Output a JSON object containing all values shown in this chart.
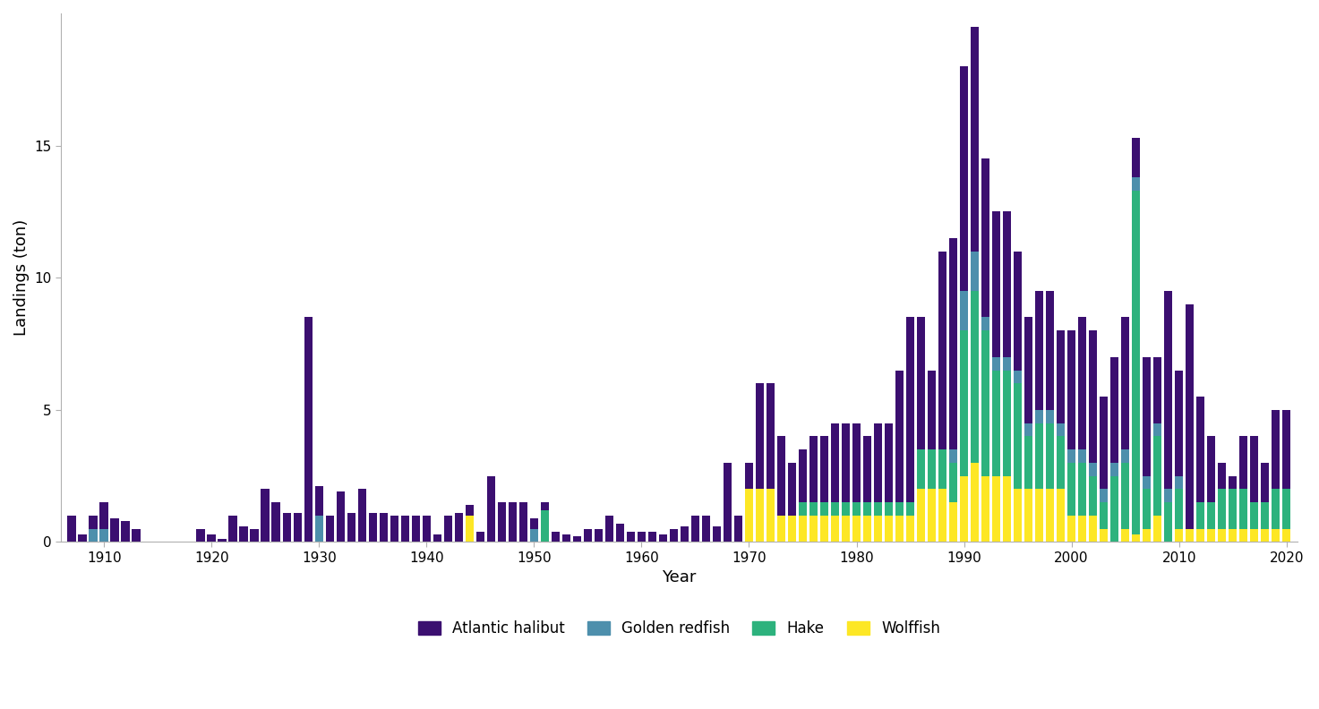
{
  "years": [
    1907,
    1908,
    1909,
    1910,
    1911,
    1912,
    1913,
    1914,
    1915,
    1916,
    1917,
    1918,
    1919,
    1920,
    1921,
    1922,
    1923,
    1924,
    1925,
    1926,
    1927,
    1928,
    1929,
    1930,
    1931,
    1932,
    1933,
    1934,
    1935,
    1936,
    1937,
    1938,
    1939,
    1940,
    1941,
    1942,
    1943,
    1944,
    1945,
    1946,
    1947,
    1948,
    1949,
    1950,
    1951,
    1952,
    1953,
    1954,
    1955,
    1956,
    1957,
    1958,
    1959,
    1960,
    1961,
    1962,
    1963,
    1964,
    1965,
    1966,
    1967,
    1968,
    1969,
    1970,
    1971,
    1972,
    1973,
    1974,
    1975,
    1976,
    1977,
    1978,
    1979,
    1980,
    1981,
    1982,
    1983,
    1984,
    1985,
    1986,
    1987,
    1988,
    1989,
    1990,
    1991,
    1992,
    1993,
    1994,
    1995,
    1996,
    1997,
    1998,
    1999,
    2000,
    2001,
    2002,
    2003,
    2004,
    2005,
    2006,
    2007,
    2008,
    2009,
    2010,
    2011,
    2012,
    2013,
    2014,
    2015,
    2016,
    2017,
    2018,
    2019,
    2020
  ],
  "atlantic_halibut": [
    1.0,
    0.3,
    0.5,
    1.0,
    0.9,
    0.8,
    0.5,
    0.0,
    0.0,
    0.0,
    0.0,
    0.0,
    0.5,
    0.3,
    0.1,
    1.0,
    0.6,
    0.5,
    2.0,
    1.5,
    1.1,
    1.1,
    8.5,
    1.1,
    1.0,
    1.9,
    1.1,
    2.0,
    1.1,
    1.1,
    1.0,
    1.0,
    1.0,
    1.0,
    0.3,
    1.0,
    1.1,
    0.4,
    0.4,
    2.5,
    1.5,
    1.5,
    1.5,
    0.4,
    0.3,
    0.4,
    0.3,
    0.2,
    0.5,
    0.5,
    1.0,
    0.7,
    0.4,
    0.4,
    0.4,
    0.3,
    0.5,
    0.6,
    1.0,
    1.0,
    0.6,
    3.0,
    1.0,
    1.0,
    4.0,
    4.0,
    3.0,
    2.0,
    2.0,
    2.5,
    2.5,
    3.0,
    3.0,
    3.0,
    2.5,
    3.0,
    3.0,
    5.0,
    7.0,
    5.0,
    3.0,
    7.5,
    8.0,
    8.5,
    8.5,
    6.0,
    5.5,
    5.5,
    4.5,
    4.0,
    4.5,
    4.5,
    3.5,
    4.5,
    5.0,
    5.0,
    3.5,
    4.0,
    5.0,
    1.5,
    4.5,
    2.5,
    7.5,
    4.0,
    8.5,
    4.0,
    2.5,
    1.0,
    0.5,
    2.0,
    2.5,
    1.5,
    3.0,
    3.0
  ],
  "golden_redfish": [
    0.0,
    0.0,
    0.5,
    0.5,
    0.0,
    0.0,
    0.0,
    0.0,
    0.0,
    0.0,
    0.0,
    0.0,
    0.0,
    0.0,
    0.0,
    0.0,
    0.0,
    0.0,
    0.0,
    0.0,
    0.0,
    0.0,
    0.0,
    1.0,
    0.0,
    0.0,
    0.0,
    0.0,
    0.0,
    0.0,
    0.0,
    0.0,
    0.0,
    0.0,
    0.0,
    0.0,
    0.0,
    0.0,
    0.0,
    0.0,
    0.0,
    0.0,
    0.0,
    0.5,
    0.0,
    0.0,
    0.0,
    0.0,
    0.0,
    0.0,
    0.0,
    0.0,
    0.0,
    0.0,
    0.0,
    0.0,
    0.0,
    0.0,
    0.0,
    0.0,
    0.0,
    0.0,
    0.0,
    0.0,
    0.0,
    0.0,
    0.0,
    0.0,
    0.0,
    0.0,
    0.0,
    0.0,
    0.0,
    0.0,
    0.0,
    0.0,
    0.0,
    0.0,
    0.0,
    0.0,
    0.0,
    0.0,
    0.5,
    1.5,
    1.5,
    0.5,
    0.5,
    0.5,
    0.5,
    0.5,
    0.5,
    0.5,
    0.5,
    0.5,
    0.5,
    0.5,
    0.5,
    0.5,
    0.5,
    0.5,
    0.5,
    0.5,
    0.5,
    0.5,
    0.0,
    0.0,
    0.0,
    0.0,
    0.0,
    0.0,
    0.0,
    0.0,
    0.0,
    0.0
  ],
  "hake": [
    0.0,
    0.0,
    0.0,
    0.0,
    0.0,
    0.0,
    0.0,
    0.0,
    0.0,
    0.0,
    0.0,
    0.0,
    0.0,
    0.0,
    0.0,
    0.0,
    0.0,
    0.0,
    0.0,
    0.0,
    0.0,
    0.0,
    0.0,
    0.0,
    0.0,
    0.0,
    0.0,
    0.0,
    0.0,
    0.0,
    0.0,
    0.0,
    0.0,
    0.0,
    0.0,
    0.0,
    0.0,
    0.0,
    0.0,
    0.0,
    0.0,
    0.0,
    0.0,
    0.0,
    1.2,
    0.0,
    0.0,
    0.0,
    0.0,
    0.0,
    0.0,
    0.0,
    0.0,
    0.0,
    0.0,
    0.0,
    0.0,
    0.0,
    0.0,
    0.0,
    0.0,
    0.0,
    0.0,
    0.0,
    0.0,
    0.0,
    0.0,
    0.0,
    0.5,
    0.5,
    0.5,
    0.5,
    0.5,
    0.5,
    0.5,
    0.5,
    0.5,
    0.5,
    0.5,
    1.5,
    1.5,
    1.5,
    1.5,
    5.5,
    6.5,
    5.5,
    4.0,
    4.0,
    4.0,
    2.0,
    2.5,
    2.5,
    2.0,
    2.0,
    2.0,
    1.5,
    1.0,
    2.5,
    2.5,
    13.0,
    1.5,
    3.0,
    1.5,
    1.5,
    0.0,
    1.0,
    1.0,
    1.5,
    1.5,
    1.5,
    1.0,
    1.0,
    1.5,
    1.5
  ],
  "wolffish": [
    0.0,
    0.0,
    0.0,
    0.0,
    0.0,
    0.0,
    0.0,
    0.0,
    0.0,
    0.0,
    0.0,
    0.0,
    0.0,
    0.0,
    0.0,
    0.0,
    0.0,
    0.0,
    0.0,
    0.0,
    0.0,
    0.0,
    0.0,
    0.0,
    0.0,
    0.0,
    0.0,
    0.0,
    0.0,
    0.0,
    0.0,
    0.0,
    0.0,
    0.0,
    0.0,
    0.0,
    0.0,
    1.0,
    0.0,
    0.0,
    0.0,
    0.0,
    0.0,
    0.0,
    0.0,
    0.0,
    0.0,
    0.0,
    0.0,
    0.0,
    0.0,
    0.0,
    0.0,
    0.0,
    0.0,
    0.0,
    0.0,
    0.0,
    0.0,
    0.0,
    0.0,
    0.0,
    0.0,
    2.0,
    2.0,
    2.0,
    1.0,
    1.0,
    1.0,
    1.0,
    1.0,
    1.0,
    1.0,
    1.0,
    1.0,
    1.0,
    1.0,
    1.0,
    1.0,
    2.0,
    2.0,
    2.0,
    1.5,
    2.5,
    3.0,
    2.5,
    2.5,
    2.5,
    2.0,
    2.0,
    2.0,
    2.0,
    2.0,
    1.0,
    1.0,
    1.0,
    0.5,
    0.0,
    0.5,
    0.3,
    0.5,
    1.0,
    0.0,
    0.5,
    0.5,
    0.5,
    0.5,
    0.5,
    0.5,
    0.5,
    0.5,
    0.5,
    0.5,
    0.5
  ],
  "colors": {
    "atlantic_halibut": "#3b0f70",
    "golden_redfish": "#4d8fac",
    "hake": "#2db27d",
    "wolffish": "#fde725"
  },
  "xlabel": "Year",
  "ylabel": "Landings (ton)",
  "ylim": [
    0,
    20
  ],
  "yticks": [
    0,
    5,
    10,
    15
  ],
  "xticks": [
    1910,
    1920,
    1930,
    1940,
    1950,
    1960,
    1970,
    1980,
    1990,
    2000,
    2010,
    2020
  ],
  "background_color": "#ffffff",
  "bar_width": 0.8
}
